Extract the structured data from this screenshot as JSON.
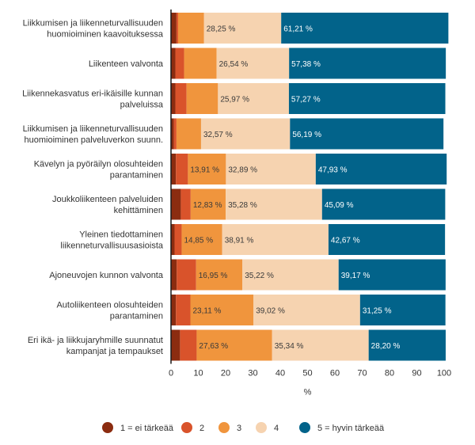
{
  "chart_data": {
    "type": "bar",
    "orientation": "horizontal",
    "stacked": true,
    "xlabel": "%",
    "xlim": [
      0,
      100
    ],
    "xticks": [
      "0",
      "10",
      "20",
      "30",
      "40",
      "50",
      "60",
      "70",
      "80",
      "90",
      "100"
    ],
    "grid": false,
    "legend_position": "bottom",
    "categories": [
      [
        "Liikkumisen ja liikenneturvallisuuden",
        "huomioiminen kaavoituksessa"
      ],
      [
        "Liikenteen valvonta"
      ],
      [
        "Liikennekasvatus eri-ikäisille kunnan",
        "palveluissa"
      ],
      [
        "Liikkumisen ja liikenneturvallisuuden",
        "huomioiminen palveluverkon suunn."
      ],
      [
        "Kävelyn ja pyöräilyn olosuhteiden",
        "parantaminen"
      ],
      [
        "Joukkoliikenteen palveluiden",
        "kehittäminen"
      ],
      [
        "Yleinen tiedottaminen",
        "liikenneturvallisuusasioista"
      ],
      [
        "Ajoneuvojen kunnon valvonta"
      ],
      [
        "Autoliikenteen olosuhteiden",
        "parantaminen"
      ],
      [
        "Eri ikä- ja liikkujaryhmille suunnatut",
        "kampanjat ja tempaukset"
      ]
    ],
    "series": [
      {
        "name": "1 = ei tärkeää",
        "color": "#8b2c10",
        "values": [
          2.0,
          1.6,
          1.6,
          1.0,
          1.8,
          3.6,
          1.3,
          2.1,
          1.8,
          3.3
        ]
      },
      {
        "name": "2",
        "color": "#d9532b",
        "values": [
          0.6,
          3.2,
          4.1,
          1.0,
          4.4,
          3.6,
          2.6,
          7.1,
          5.3,
          6.1
        ]
      },
      {
        "name": "3",
        "color": "#f0953d",
        "values": [
          9.5,
          11.9,
          11.5,
          9.0,
          13.91,
          12.83,
          14.85,
          16.95,
          23.11,
          27.63
        ]
      },
      {
        "name": "4",
        "color": "#f6d3b0",
        "values": [
          28.25,
          26.54,
          25.97,
          32.57,
          32.89,
          35.28,
          38.91,
          35.22,
          39.02,
          35.34
        ]
      },
      {
        "name": "5 = hyvin tärkeää",
        "color": "#02638a",
        "values": [
          61.21,
          57.38,
          57.27,
          56.19,
          47.93,
          45.09,
          42.67,
          39.17,
          31.25,
          28.2
        ]
      }
    ],
    "data_labels": [
      [
        null,
        null,
        null,
        "28,25 %",
        "61,21 %"
      ],
      [
        null,
        null,
        null,
        "26,54 %",
        "57,38 %"
      ],
      [
        null,
        null,
        null,
        "25,97 %",
        "57,27 %"
      ],
      [
        null,
        null,
        null,
        "32,57 %",
        "56,19 %"
      ],
      [
        null,
        null,
        "13,91 %",
        "32,89 %",
        "47,93 %"
      ],
      [
        null,
        null,
        "12,83 %",
        "35,28 %",
        "45,09 %"
      ],
      [
        null,
        null,
        "14,85 %",
        "38,91 %",
        "42,67 %"
      ],
      [
        null,
        null,
        "16,95 %",
        "35,22 %",
        "39,17 %"
      ],
      [
        null,
        null,
        "23,11 %",
        "39,02 %",
        "31,25 %"
      ],
      [
        null,
        null,
        "27,63 %",
        "35,34 %",
        "28,20 %"
      ]
    ]
  }
}
